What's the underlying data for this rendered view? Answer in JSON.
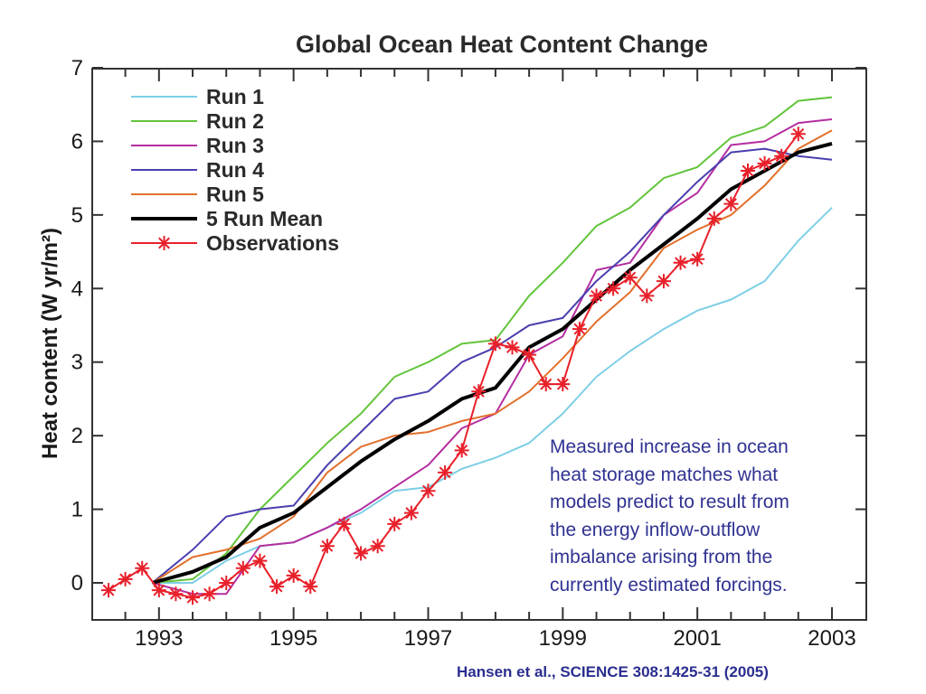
{
  "chart_data": {
    "type": "line",
    "title": "Global Ocean Heat Content Change",
    "ylabel": "Heat content (W yr/m²)",
    "xlabel": "",
    "xlim": [
      1992.0,
      2003.0
    ],
    "ylim": [
      -0.5,
      7
    ],
    "x_ticks": [
      1993,
      1995,
      1997,
      1999,
      2001,
      2003
    ],
    "x_tick_labels": [
      "1993",
      "1995",
      "1997",
      "1999",
      "2001",
      "2003"
    ],
    "y_ticks": [
      0,
      1,
      2,
      3,
      4,
      5,
      6,
      7
    ],
    "y_tick_labels": [
      "0",
      "1",
      "2",
      "3",
      "4",
      "5",
      "6",
      "7"
    ],
    "legend_position": "top-left",
    "grid": false,
    "series": [
      {
        "name": "Run 1",
        "color": "#7ecfe6",
        "style": "line",
        "x": [
          1993,
          1993.5,
          1994,
          1994.5,
          1995,
          1995.5,
          1996,
          1996.5,
          1997,
          1997.5,
          1998,
          1998.5,
          1999,
          1999.5,
          2000,
          2000.5,
          2001,
          2001.5,
          2002,
          2002.5,
          2003
        ],
        "y": [
          0.0,
          0.0,
          0.3,
          0.5,
          0.55,
          0.75,
          0.95,
          1.25,
          1.3,
          1.55,
          1.7,
          1.9,
          2.3,
          2.8,
          3.15,
          3.45,
          3.7,
          3.85,
          4.1,
          4.65,
          5.1
        ]
      },
      {
        "name": "Run 2",
        "color": "#63c43c",
        "style": "line",
        "x": [
          1992.9,
          1993.5,
          1994,
          1994.5,
          1995,
          1995.5,
          1996,
          1996.5,
          1997,
          1997.5,
          1998,
          1998.5,
          1999,
          1999.5,
          2000,
          2000.5,
          2001,
          2001.5,
          2002,
          2002.5,
          2003
        ],
        "y": [
          0.0,
          0.05,
          0.4,
          1.0,
          1.45,
          1.9,
          2.3,
          2.8,
          3.0,
          3.25,
          3.3,
          3.9,
          4.35,
          4.85,
          5.1,
          5.5,
          5.65,
          6.05,
          6.2,
          6.55,
          6.6
        ]
      },
      {
        "name": "Run 3",
        "color": "#b42ea0",
        "style": "line",
        "x": [
          1992.9,
          1993.5,
          1994,
          1994.5,
          1995,
          1995.5,
          1996,
          1996.5,
          1997,
          1997.5,
          1998,
          1998.5,
          1999,
          1999.5,
          2000,
          2000.5,
          2001,
          2001.5,
          2002,
          2002.5,
          2003
        ],
        "y": [
          0.0,
          -0.15,
          -0.15,
          0.5,
          0.55,
          0.75,
          1.0,
          1.3,
          1.6,
          2.1,
          2.3,
          3.1,
          3.35,
          4.25,
          4.35,
          5.0,
          5.3,
          5.95,
          6.0,
          6.25,
          6.3
        ]
      },
      {
        "name": "Run 4",
        "color": "#4a3fae",
        "style": "line",
        "x": [
          1992.9,
          1993.5,
          1994,
          1994.5,
          1995,
          1995.5,
          1996,
          1996.5,
          1997,
          1997.5,
          1998,
          1998.5,
          1999,
          1999.5,
          2000,
          2000.5,
          2001,
          2001.5,
          2002,
          2002.5,
          2003
        ],
        "y": [
          0.0,
          0.45,
          0.9,
          1.0,
          1.05,
          1.6,
          2.05,
          2.5,
          2.6,
          3.0,
          3.2,
          3.5,
          3.6,
          4.1,
          4.5,
          5.0,
          5.45,
          5.85,
          5.9,
          5.8,
          5.75
        ]
      },
      {
        "name": "Run 5",
        "color": "#e2702c",
        "style": "line",
        "x": [
          1992.9,
          1993.5,
          1994,
          1994.5,
          1995,
          1995.5,
          1996,
          1996.5,
          1997,
          1997.5,
          1998,
          1998.5,
          1999,
          1999.5,
          2000,
          2000.5,
          2001,
          2001.5,
          2002,
          2002.5,
          2003
        ],
        "y": [
          0.0,
          0.35,
          0.45,
          0.6,
          0.9,
          1.5,
          1.85,
          2.0,
          2.05,
          2.2,
          2.3,
          2.6,
          3.05,
          3.55,
          3.95,
          4.55,
          4.8,
          5.0,
          5.4,
          5.9,
          6.15
        ]
      },
      {
        "name": "5 Run Mean",
        "color": "#000000",
        "style": "thick",
        "x": [
          1992.9,
          1993.5,
          1994,
          1994.5,
          1995,
          1995.5,
          1996,
          1996.5,
          1997,
          1997.5,
          1998,
          1998.5,
          1999,
          1999.5,
          2000,
          2000.5,
          2001,
          2001.5,
          2002,
          2002.5,
          2003
        ],
        "y": [
          0.0,
          0.15,
          0.35,
          0.75,
          0.95,
          1.3,
          1.65,
          1.95,
          2.2,
          2.5,
          2.65,
          3.2,
          3.45,
          3.85,
          4.25,
          4.6,
          4.95,
          5.35,
          5.6,
          5.85,
          5.97
        ]
      },
      {
        "name": "Observations",
        "color": "#e8202a",
        "style": "line-star",
        "x": [
          1992.25,
          1992.5,
          1992.75,
          1993.0,
          1993.25,
          1993.5,
          1993.75,
          1994.0,
          1994.25,
          1994.5,
          1994.75,
          1995.0,
          1995.25,
          1995.5,
          1995.75,
          1996.0,
          1996.25,
          1996.5,
          1996.75,
          1997.0,
          1997.25,
          1997.5,
          1997.75,
          1998.0,
          1998.25,
          1998.5,
          1998.75,
          1999.0,
          1999.25,
          1999.5,
          1999.75,
          2000.0,
          2000.25,
          2000.5,
          2000.75,
          2001.0,
          2001.25,
          2001.5,
          2001.75,
          2002.0,
          2002.25,
          2002.5
        ],
        "y": [
          -0.1,
          0.05,
          0.2,
          -0.1,
          -0.15,
          -0.2,
          -0.15,
          0.0,
          0.2,
          0.3,
          -0.05,
          0.1,
          -0.05,
          0.5,
          0.8,
          0.4,
          0.5,
          0.8,
          0.95,
          1.25,
          1.5,
          1.8,
          2.6,
          3.25,
          3.2,
          3.1,
          2.7,
          2.7,
          3.45,
          3.9,
          4.0,
          4.15,
          3.9,
          4.1,
          4.35,
          4.4,
          4.95,
          5.15,
          5.6,
          5.7,
          5.8,
          6.1
        ]
      }
    ]
  },
  "annotation": {
    "lines": [
      "Measured increase in ocean",
      "heat storage matches what",
      "models predict to result from",
      "the energy inflow-outflow",
      "imbalance arising from the",
      "currently estimated forcings."
    ]
  },
  "citation": "Hansen et al., SCIENCE 308:1425-31 (2005)"
}
